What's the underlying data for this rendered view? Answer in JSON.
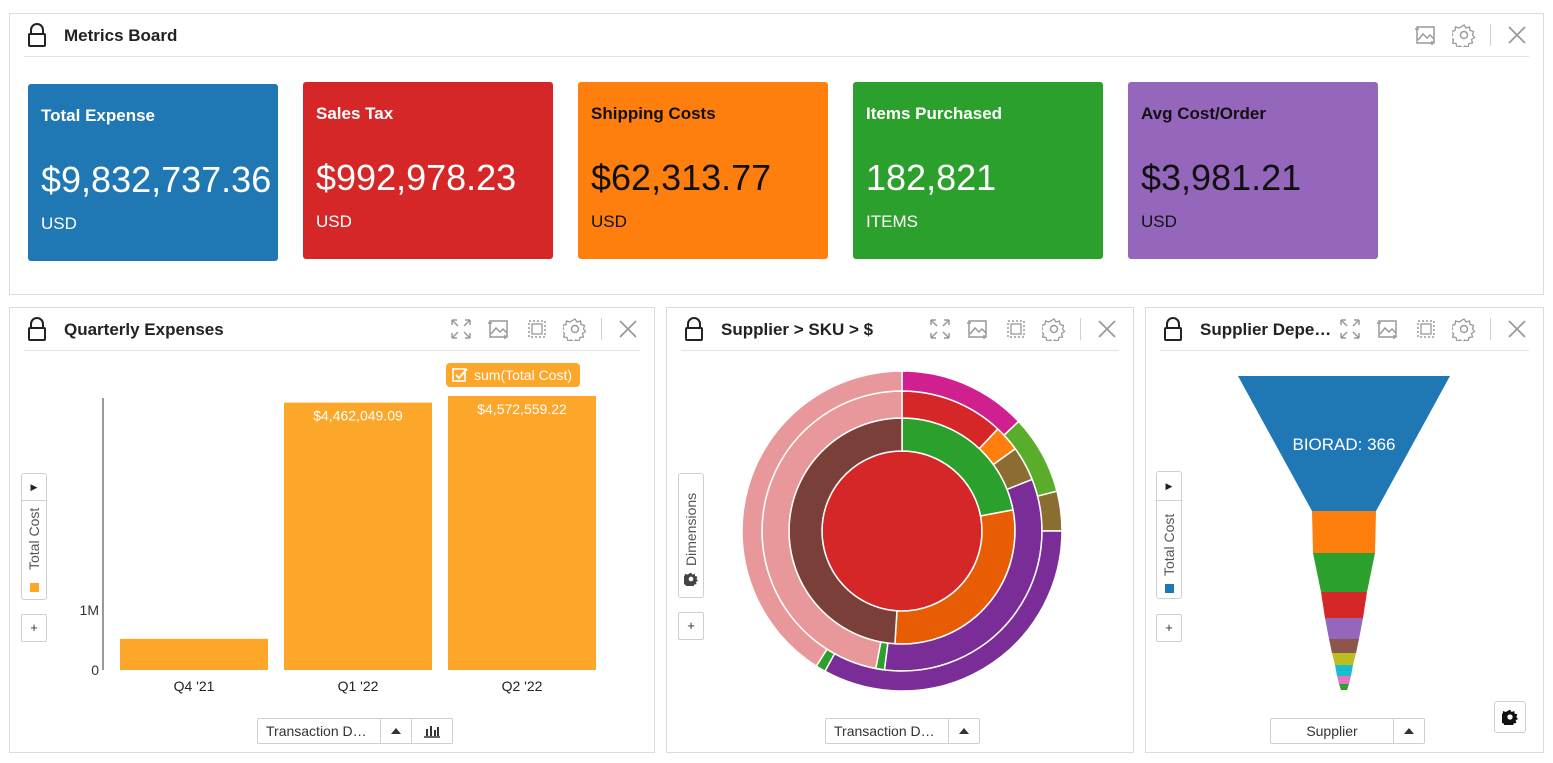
{
  "metrics_board": {
    "title": "Metrics Board",
    "kpis": [
      {
        "title": "Total Expense",
        "value": "$9,832,737.36",
        "unit": "USD",
        "color": "#1f77b4"
      },
      {
        "title": "Sales Tax",
        "value": "$992,978.23",
        "unit": "USD",
        "color": "#d62728"
      },
      {
        "title": "Shipping Costs",
        "value": "$62,313.77",
        "unit": "USD",
        "color": "#ff7f0e"
      },
      {
        "title": "Items Purchased",
        "value": "182,821",
        "unit": "ITEMS",
        "color": "#2ca02c"
      },
      {
        "title": "Avg Cost/Order",
        "value": "$3,981.21",
        "unit": "USD",
        "color": "#9467bd"
      }
    ]
  },
  "quarterly_expenses": {
    "title": "Quarterly Expenses",
    "legend_label": "sum(Total Cost)",
    "axis_label": "Total Cost",
    "dimension_select": "Transaction D…",
    "plus_label": "+"
  },
  "supplier_sku": {
    "title": "Supplier > SKU > $",
    "dimensions_label": "Dimensions",
    "dimension_select": "Transaction D…",
    "plus_label": "+"
  },
  "supplier_dependency": {
    "title": "Supplier Depe…",
    "axis_label": "Total Cost",
    "dimension_select": "Supplier",
    "plus_label": "+"
  },
  "chart_data": [
    {
      "type": "bar",
      "categories": [
        "Q4 '21",
        "Q1 '22",
        "Q2 '22"
      ],
      "values": [
        520000,
        4462049.09,
        4572559.22
      ],
      "data_labels": [
        "",
        "$4,462,049.09",
        "$4,572,559.22"
      ],
      "series": [
        {
          "name": "sum(Total Cost)",
          "values": [
            520000,
            4462049.09,
            4572559.22
          ]
        }
      ],
      "ylabel": "Total Cost",
      "y_ticks": [
        "0",
        "1M"
      ],
      "color": "#fca62a"
    },
    {
      "type": "pie",
      "subtype": "sunburst",
      "rings": [
        {
          "level": 1,
          "slices": [
            {
              "value": 100,
              "color": "#d62728"
            }
          ]
        },
        {
          "level": 2,
          "slices": [
            {
              "value": 22,
              "color": "#2ca02c"
            },
            {
              "value": 29,
              "color": "#e85d04"
            },
            {
              "value": 49,
              "color": "#7b3f3a"
            }
          ]
        },
        {
          "level": 3,
          "slices": [
            {
              "value": 12,
              "color": "#d62728"
            },
            {
              "value": 3,
              "color": "#ff7f0e"
            },
            {
              "value": 4,
              "color": "#8c6d31"
            },
            {
              "value": 33,
              "color": "#7b2d97"
            },
            {
              "value": 1,
              "color": "#2ca02c"
            },
            {
              "value": 47,
              "color": "#e8979a"
            }
          ]
        },
        {
          "level": 4,
          "slices": [
            {
              "value": 13,
              "color": "#d0208f"
            },
            {
              "value": 8,
              "color": "#5aad2b"
            },
            {
              "value": 4,
              "color": "#8c6d31"
            },
            {
              "value": 33,
              "color": "#7b2d97"
            },
            {
              "value": 1,
              "color": "#2ca02c"
            },
            {
              "value": 41,
              "color": "#e8979a"
            }
          ]
        }
      ]
    },
    {
      "type": "bar",
      "subtype": "funnel",
      "label": "BIORAD: 366",
      "values": [
        366,
        52,
        40,
        28,
        22,
        14,
        12,
        10,
        8,
        6
      ],
      "colors": [
        "#1f77b4",
        "#ff7f0e",
        "#2ca02c",
        "#d62728",
        "#9467bd",
        "#8c564b",
        "#bcbd22",
        "#17becf",
        "#e377c2",
        "#2ca02c"
      ]
    }
  ]
}
